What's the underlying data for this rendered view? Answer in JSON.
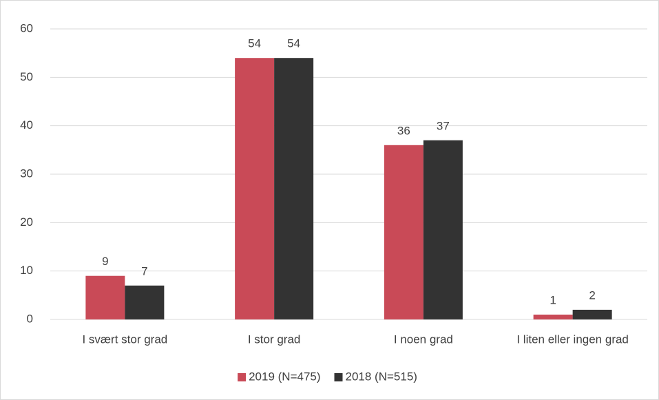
{
  "chart_data": {
    "type": "bar",
    "categories": [
      "I svært stor grad",
      "I stor grad",
      "I noen grad",
      "I liten eller ingen grad"
    ],
    "series": [
      {
        "name": "2019 (N=475)",
        "color": "#c94a57",
        "values": [
          9,
          54,
          36,
          1
        ]
      },
      {
        "name": "2018 (N=515)",
        "color": "#333333",
        "values": [
          7,
          54,
          37,
          2
        ]
      }
    ],
    "ylim": [
      0,
      60
    ],
    "yticks": [
      0,
      10,
      20,
      30,
      40,
      50,
      60
    ],
    "grid": true,
    "legend": "bottom"
  }
}
